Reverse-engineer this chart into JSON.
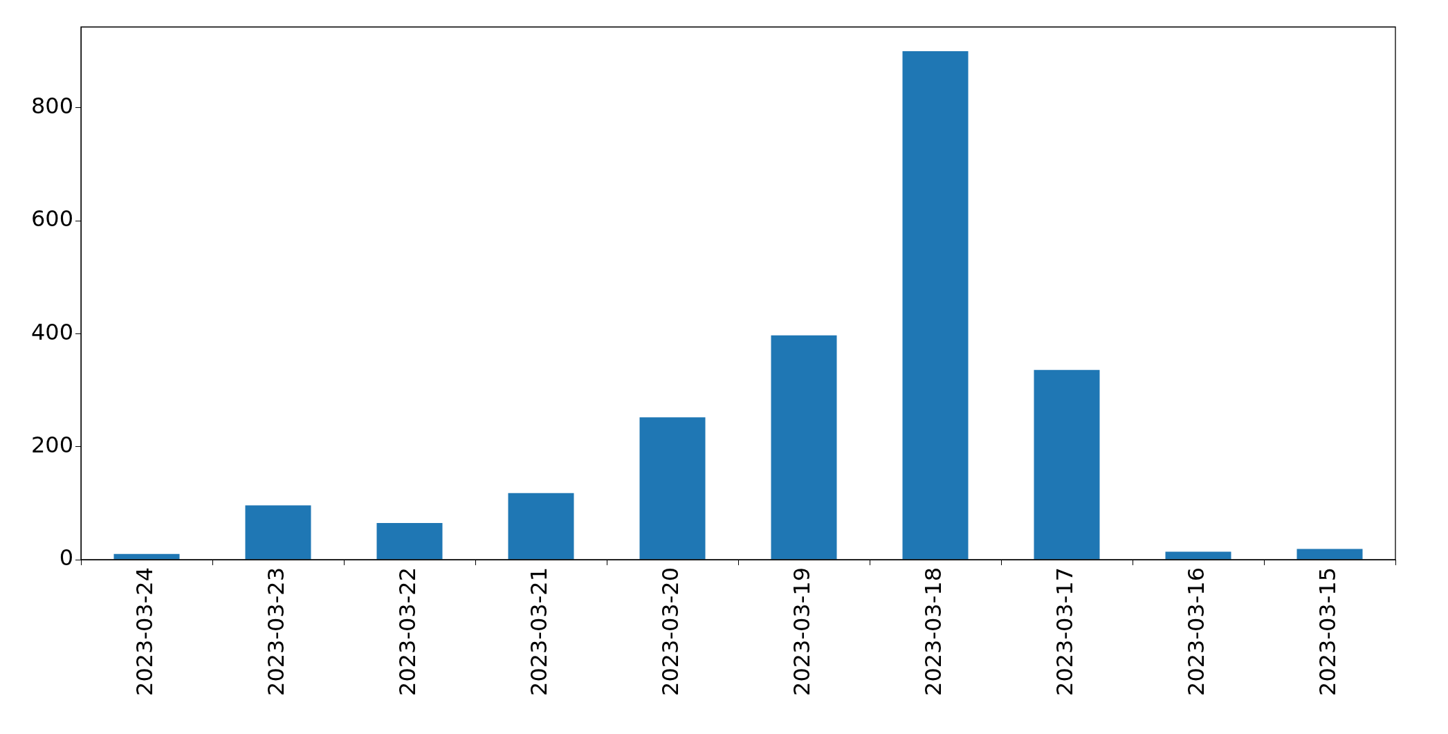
{
  "chart_data": {
    "type": "bar",
    "categories": [
      "2023-03-24",
      "2023-03-23",
      "2023-03-22",
      "2023-03-21",
      "2023-03-20",
      "2023-03-19",
      "2023-03-18",
      "2023-03-17",
      "2023-03-16",
      "2023-03-15"
    ],
    "values": [
      10,
      96,
      65,
      118,
      252,
      397,
      900,
      336,
      14,
      19
    ],
    "color": "#1f77b4",
    "ylim": [
      0,
      943
    ],
    "yticks": [
      0,
      200,
      400,
      600,
      800
    ],
    "grid": false,
    "legend": false
  }
}
